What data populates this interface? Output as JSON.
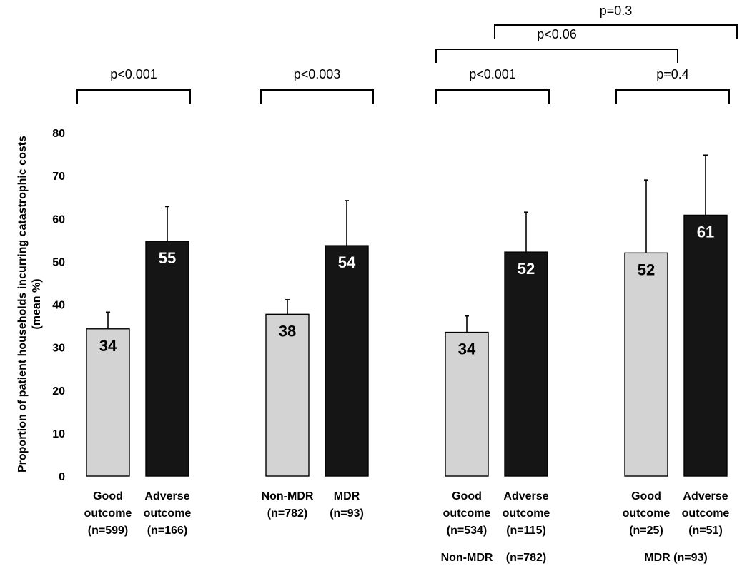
{
  "colors": {
    "good": "#d3d3d3",
    "adverse": "#151515",
    "axis": "#000000"
  },
  "chart_data": {
    "type": "bar",
    "ylabel_line1": "Proportion of patient households incurring catastrophic costs",
    "ylabel_line2": "(mean %)",
    "ylim": [
      0,
      80
    ],
    "yticks": [
      0,
      10,
      20,
      30,
      40,
      50,
      60,
      70,
      80
    ],
    "grid": false,
    "bars": [
      {
        "label_lines": [
          "Good",
          "outcome",
          "(n=599)"
        ],
        "value": 34.3,
        "error": 3.9,
        "data_label": "34",
        "kind": "good"
      },
      {
        "label_lines": [
          "Adverse",
          "outcome",
          "(n=166)"
        ],
        "value": 54.7,
        "error": 8.1,
        "data_label": "55",
        "kind": "adverse"
      },
      {
        "label_lines": [
          "Non-MDR",
          "(n=782)"
        ],
        "value": 37.7,
        "error": 3.4,
        "data_label": "38",
        "kind": "good"
      },
      {
        "label_lines": [
          "MDR",
          "(n=93)"
        ],
        "value": 53.7,
        "error": 10.5,
        "data_label": "54",
        "kind": "adverse"
      },
      {
        "label_lines": [
          "Good",
          "outcome",
          "(n=534)"
        ],
        "value": 33.5,
        "error": 3.8,
        "data_label": "34",
        "kind": "good"
      },
      {
        "label_lines": [
          "Adverse",
          "outcome",
          "(n=115)"
        ],
        "value": 52.2,
        "error": 9.3,
        "data_label": "52",
        "kind": "adverse"
      },
      {
        "label_lines": [
          "Good",
          "outcome",
          "(n=25)"
        ],
        "value": 52.0,
        "error": 17.0,
        "data_label": "52",
        "kind": "good"
      },
      {
        "label_lines": [
          "Adverse",
          "outcome",
          "(n=51)"
        ],
        "value": 60.8,
        "error": 14.0,
        "data_label": "61",
        "kind": "adverse"
      }
    ],
    "group_labels": [
      {
        "text": "Non-MDR",
        "under_bar": 4
      },
      {
        "text": "(n=782)",
        "under_bar": 5
      },
      {
        "text": "MDR (n=93)",
        "under_bars": [
          6,
          7
        ]
      }
    ],
    "comparisons": [
      {
        "from_bar": 0,
        "to_bar": 1,
        "text": "p<0.001"
      },
      {
        "from_bar": 2,
        "to_bar": 3,
        "text": "p<0.003"
      },
      {
        "from_bar": 4,
        "to_bar": 5,
        "text": "p<0.001"
      },
      {
        "from_bar": 6,
        "to_bar": 7,
        "text": "p=0.4"
      },
      {
        "from_bar": 4,
        "to_bar": 6,
        "text": "p<0.06"
      },
      {
        "from_bar": 5,
        "to_bar": 7,
        "text": "p=0.3"
      }
    ]
  }
}
